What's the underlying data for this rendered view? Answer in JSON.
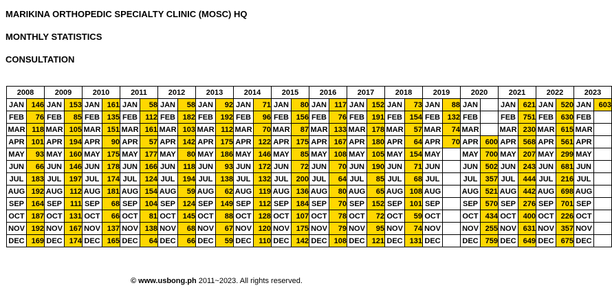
{
  "header": {
    "title": "MARIKINA ORTHOPEDIC SPECIALTY CLINIC (MOSC) HQ",
    "subtitle": "MONTHLY STATISTICS",
    "section": "CONSULTATION"
  },
  "highlight_color": "#ffd700",
  "years": [
    "2008",
    "2009",
    "2010",
    "2011",
    "2012",
    "2013",
    "2014",
    "2015",
    "2016",
    "2017",
    "2018",
    "2019",
    "2020",
    "2021",
    "2022",
    "2023"
  ],
  "months": [
    "JAN",
    "FEB",
    "MAR",
    "APR",
    "MAY",
    "JUN",
    "JUL",
    "AUG",
    "SEP",
    "OCT",
    "NOV",
    "DEC"
  ],
  "values": {
    "2008": [
      "146",
      "76",
      "118",
      "101",
      "93",
      "66",
      "183",
      "192",
      "164",
      "187",
      "192",
      "169"
    ],
    "2009": [
      "153",
      "85",
      "105",
      "194",
      "160",
      "146",
      "197",
      "112",
      "111",
      "131",
      "167",
      "174"
    ],
    "2010": [
      "161",
      "135",
      "151",
      "90",
      "175",
      "178",
      "174",
      "181",
      "68",
      "66",
      "137",
      "165"
    ],
    "2011": [
      "58",
      "112",
      "161",
      "57",
      "177",
      "166",
      "124",
      "154",
      "104",
      "81",
      "138",
      "64"
    ],
    "2012": [
      "58",
      "182",
      "103",
      "142",
      "80",
      "118",
      "194",
      "59",
      "124",
      "145",
      "68",
      "66"
    ],
    "2013": [
      "92",
      "192",
      "112",
      "175",
      "186",
      "93",
      "138",
      "62",
      "149",
      "88",
      "67",
      "59"
    ],
    "2014": [
      "71",
      "96",
      "70",
      "122",
      "146",
      "172",
      "132",
      "119",
      "112",
      "128",
      "120",
      "110"
    ],
    "2015": [
      "80",
      "156",
      "87",
      "175",
      "85",
      "72",
      "200",
      "136",
      "184",
      "107",
      "175",
      "142"
    ],
    "2016": [
      "117",
      "76",
      "133",
      "167",
      "108",
      "70",
      "64",
      "80",
      "70",
      "78",
      "79",
      "108"
    ],
    "2017": [
      "152",
      "191",
      "178",
      "180",
      "105",
      "190",
      "85",
      "65",
      "152",
      "72",
      "95",
      "121"
    ],
    "2018": [
      "73",
      "154",
      "57",
      "64",
      "154",
      "71",
      "68",
      "108",
      "101",
      "59",
      "74",
      "131"
    ],
    "2019": [
      "88",
      "132",
      "74",
      "70",
      "",
      "",
      "",
      "",
      "",
      "",
      "",
      ""
    ],
    "2020": [
      "",
      "",
      "",
      "600",
      "700",
      "502",
      "357",
      "521",
      "570",
      "434",
      "255",
      "759"
    ],
    "2021": [
      "621",
      "751",
      "230",
      "568",
      "207",
      "243",
      "444",
      "442",
      "276",
      "400",
      "631",
      "649"
    ],
    "2022": [
      "520",
      "630",
      "615",
      "561",
      "299",
      "681",
      "216",
      "698",
      "701",
      "226",
      "357",
      "675"
    ],
    "2023": [
      "603",
      "",
      "",
      "",
      "",
      "",
      "",
      "",
      "",
      "",
      "",
      ""
    ]
  },
  "footer": {
    "copyright_site": "© www.usbong.ph",
    "copyright_rest": " 2011~2023. All rights reserved."
  }
}
